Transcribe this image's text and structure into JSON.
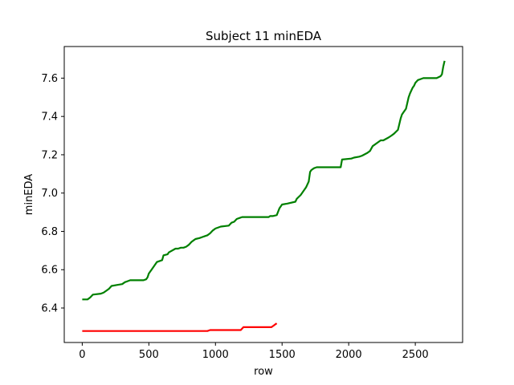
{
  "chart_data": {
    "type": "line",
    "title": "Subject 11 minEDA",
    "xlabel": "row",
    "ylabel": "minEDA",
    "xlim": [
      -135,
      2855
    ],
    "ylim": [
      6.22,
      7.765
    ],
    "xticks": [
      0,
      500,
      1000,
      1500,
      2000,
      2500
    ],
    "yticks": [
      6.4,
      6.6,
      6.8,
      7.0,
      7.2,
      7.4,
      7.6
    ],
    "ytick_labels": [
      "6.4",
      "6.6",
      "6.8",
      "7.0",
      "7.2",
      "7.4",
      "7.6"
    ],
    "grid": false,
    "legend": "none",
    "series": [
      {
        "color": "#008000",
        "x": [
          0,
          40,
          60,
          80,
          140,
          160,
          180,
          200,
          220,
          260,
          300,
          320,
          340,
          360,
          460,
          480,
          490,
          500,
          520,
          540,
          560,
          600,
          610,
          640,
          650,
          700,
          720,
          740,
          760,
          780,
          800,
          820,
          840,
          850,
          880,
          900,
          940,
          960,
          980,
          1000,
          1040,
          1100,
          1120,
          1140,
          1160,
          1180,
          1200,
          1220,
          1400,
          1410,
          1430,
          1460,
          1480,
          1500,
          1540,
          1600,
          1610,
          1640,
          1660,
          1680,
          1700,
          1710,
          1720,
          1740,
          1760,
          1780,
          1940,
          1950,
          2020,
          2040,
          2080,
          2100,
          2140,
          2160,
          2180,
          2220,
          2240,
          2260,
          2300,
          2320,
          2340,
          2370,
          2380,
          2390,
          2400,
          2420,
          2430,
          2450,
          2460,
          2480,
          2490,
          2500,
          2520,
          2540,
          2560,
          2600,
          2660,
          2690,
          2700,
          2710,
          2720
        ],
        "y": [
          6.445,
          6.445,
          6.455,
          6.47,
          6.475,
          6.48,
          6.49,
          6.5,
          6.515,
          6.52,
          6.525,
          6.535,
          6.54,
          6.545,
          6.545,
          6.55,
          6.56,
          6.58,
          6.6,
          6.62,
          6.64,
          6.65,
          6.675,
          6.68,
          6.69,
          6.71,
          6.71,
          6.715,
          6.715,
          6.72,
          6.73,
          6.745,
          6.755,
          6.76,
          6.765,
          6.77,
          6.78,
          6.79,
          6.805,
          6.815,
          6.825,
          6.83,
          6.845,
          6.85,
          6.865,
          6.87,
          6.875,
          6.875,
          6.875,
          6.88,
          6.88,
          6.885,
          6.92,
          6.94,
          6.945,
          6.955,
          6.97,
          6.99,
          7.01,
          7.03,
          7.06,
          7.11,
          7.12,
          7.13,
          7.135,
          7.135,
          7.135,
          7.175,
          7.18,
          7.185,
          7.19,
          7.195,
          7.21,
          7.22,
          7.245,
          7.265,
          7.275,
          7.275,
          7.29,
          7.3,
          7.31,
          7.33,
          7.36,
          7.39,
          7.41,
          7.43,
          7.44,
          7.5,
          7.52,
          7.55,
          7.56,
          7.575,
          7.59,
          7.595,
          7.6,
          7.6,
          7.6,
          7.61,
          7.62,
          7.66,
          7.69
        ]
      },
      {
        "color": "#ff0000",
        "x": [
          0,
          100,
          300,
          500,
          700,
          940,
          960,
          1000,
          1100,
          1190,
          1210,
          1250,
          1300,
          1420,
          1440,
          1450,
          1460
        ],
        "y": [
          6.28,
          6.28,
          6.28,
          6.28,
          6.28,
          6.28,
          6.285,
          6.285,
          6.285,
          6.285,
          6.3,
          6.3,
          6.3,
          6.3,
          6.31,
          6.315,
          6.32
        ]
      }
    ]
  }
}
